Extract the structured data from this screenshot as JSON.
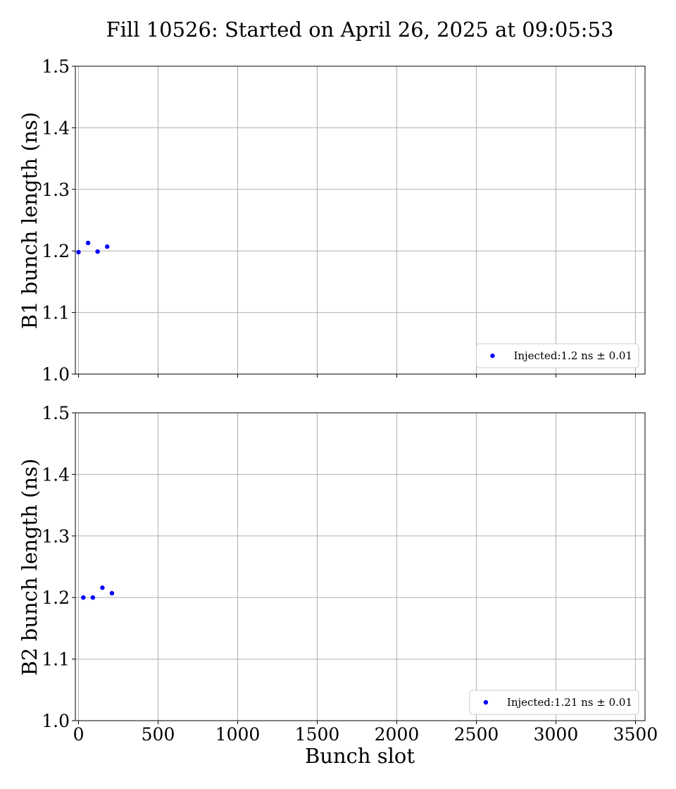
{
  "chart_data": [
    {
      "type": "scatter",
      "title": "Fill 10526: Started on April 26, 2025 at 09:05:53",
      "xlabel": "",
      "ylabel": "B1 bunch length (ns)",
      "xlim": [
        -20,
        3560
      ],
      "ylim": [
        1.0,
        1.5
      ],
      "xticks": [
        0,
        500,
        1000,
        1500,
        2000,
        2500,
        3000,
        3500
      ],
      "xtick_labels_visible": false,
      "yticks": [
        1.0,
        1.1,
        1.2,
        1.3,
        1.4,
        1.5
      ],
      "ytick_labels": [
        "1.0",
        "1.1",
        "1.2",
        "1.3",
        "1.4",
        "1.5"
      ],
      "grid": true,
      "legend_position": "lower-right",
      "series": [
        {
          "name": "Injected:1.2 ns ± 0.01",
          "color": "#0000ff",
          "x": [
            0,
            60,
            120,
            180
          ],
          "y": [
            1.198,
            1.213,
            1.199,
            1.207
          ]
        }
      ]
    },
    {
      "type": "scatter",
      "title": "",
      "xlabel": "Bunch slot",
      "ylabel": "B2 bunch length (ns)",
      "xlim": [
        -20,
        3560
      ],
      "ylim": [
        1.0,
        1.5
      ],
      "xticks": [
        0,
        500,
        1000,
        1500,
        2000,
        2500,
        3000,
        3500
      ],
      "xtick_labels": [
        "0",
        "500",
        "1000",
        "1500",
        "2000",
        "2500",
        "3000",
        "3500"
      ],
      "xtick_labels_visible": true,
      "yticks": [
        1.0,
        1.1,
        1.2,
        1.3,
        1.4,
        1.5
      ],
      "ytick_labels": [
        "1.0",
        "1.1",
        "1.2",
        "1.3",
        "1.4",
        "1.5"
      ],
      "grid": true,
      "legend_position": "lower-right",
      "series": [
        {
          "name": "Injected:1.21 ns ± 0.01",
          "color": "#0000ff",
          "x": [
            30,
            90,
            150,
            210
          ],
          "y": [
            1.2,
            1.2,
            1.216,
            1.207
          ]
        }
      ]
    }
  ]
}
